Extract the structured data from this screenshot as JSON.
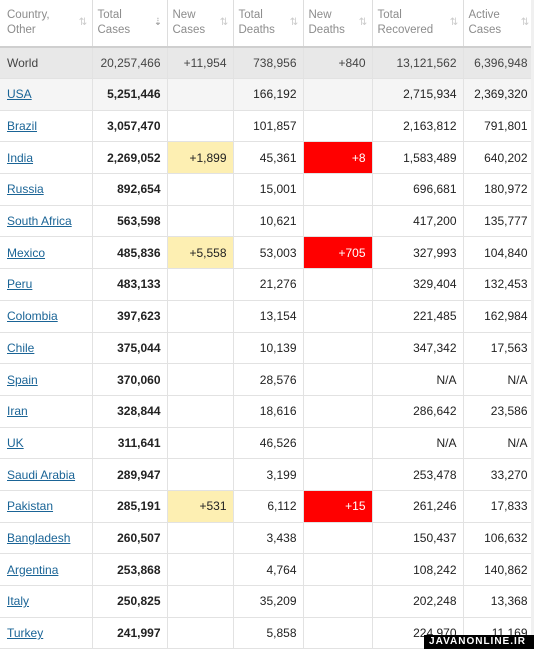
{
  "headers": [
    {
      "label": "Country,\nOther",
      "sort_icon": "sort-icon"
    },
    {
      "label": "Total\nCases",
      "sort_icon": "sort-desc-icon"
    },
    {
      "label": "New\nCases",
      "sort_icon": "sort-icon"
    },
    {
      "label": "Total\nDeaths",
      "sort_icon": "sort-icon"
    },
    {
      "label": "New\nDeaths",
      "sort_icon": "sort-icon"
    },
    {
      "label": "Total\nRecovered",
      "sort_icon": "sort-icon"
    },
    {
      "label": "Active\nCases",
      "sort_icon": "sort-icon"
    }
  ],
  "world": {
    "name": "World",
    "total_cases": "20,257,466",
    "new_cases": "+11,954",
    "total_deaths": "738,956",
    "new_deaths": "+840",
    "total_recovered": "13,121,562",
    "active_cases": "6,396,948"
  },
  "rows": [
    {
      "name": "USA",
      "total_cases": "5,251,446",
      "new_cases": "",
      "total_deaths": "166,192",
      "new_deaths": "",
      "total_recovered": "2,715,934",
      "active_cases": "2,369,320"
    },
    {
      "name": "Brazil",
      "total_cases": "3,057,470",
      "new_cases": "",
      "total_deaths": "101,857",
      "new_deaths": "",
      "total_recovered": "2,163,812",
      "active_cases": "791,801"
    },
    {
      "name": "India",
      "total_cases": "2,269,052",
      "new_cases": "+1,899",
      "total_deaths": "45,361",
      "new_deaths": "+8",
      "total_recovered": "1,583,489",
      "active_cases": "640,202"
    },
    {
      "name": "Russia",
      "total_cases": "892,654",
      "new_cases": "",
      "total_deaths": "15,001",
      "new_deaths": "",
      "total_recovered": "696,681",
      "active_cases": "180,972"
    },
    {
      "name": "South Africa",
      "total_cases": "563,598",
      "new_cases": "",
      "total_deaths": "10,621",
      "new_deaths": "",
      "total_recovered": "417,200",
      "active_cases": "135,777"
    },
    {
      "name": "Mexico",
      "total_cases": "485,836",
      "new_cases": "+5,558",
      "total_deaths": "53,003",
      "new_deaths": "+705",
      "total_recovered": "327,993",
      "active_cases": "104,840"
    },
    {
      "name": "Peru",
      "total_cases": "483,133",
      "new_cases": "",
      "total_deaths": "21,276",
      "new_deaths": "",
      "total_recovered": "329,404",
      "active_cases": "132,453"
    },
    {
      "name": "Colombia",
      "total_cases": "397,623",
      "new_cases": "",
      "total_deaths": "13,154",
      "new_deaths": "",
      "total_recovered": "221,485",
      "active_cases": "162,984"
    },
    {
      "name": "Chile",
      "total_cases": "375,044",
      "new_cases": "",
      "total_deaths": "10,139",
      "new_deaths": "",
      "total_recovered": "347,342",
      "active_cases": "17,563"
    },
    {
      "name": "Spain",
      "total_cases": "370,060",
      "new_cases": "",
      "total_deaths": "28,576",
      "new_deaths": "",
      "total_recovered": "N/A",
      "active_cases": "N/A"
    },
    {
      "name": "Iran",
      "total_cases": "328,844",
      "new_cases": "",
      "total_deaths": "18,616",
      "new_deaths": "",
      "total_recovered": "286,642",
      "active_cases": "23,586"
    },
    {
      "name": "UK",
      "total_cases": "311,641",
      "new_cases": "",
      "total_deaths": "46,526",
      "new_deaths": "",
      "total_recovered": "N/A",
      "active_cases": "N/A"
    },
    {
      "name": "Saudi Arabia",
      "total_cases": "289,947",
      "new_cases": "",
      "total_deaths": "3,199",
      "new_deaths": "",
      "total_recovered": "253,478",
      "active_cases": "33,270"
    },
    {
      "name": "Pakistan",
      "total_cases": "285,191",
      "new_cases": "+531",
      "total_deaths": "6,112",
      "new_deaths": "+15",
      "total_recovered": "261,246",
      "active_cases": "17,833"
    },
    {
      "name": "Bangladesh",
      "total_cases": "260,507",
      "new_cases": "",
      "total_deaths": "3,438",
      "new_deaths": "",
      "total_recovered": "150,437",
      "active_cases": "106,632"
    },
    {
      "name": "Argentina",
      "total_cases": "253,868",
      "new_cases": "",
      "total_deaths": "4,764",
      "new_deaths": "",
      "total_recovered": "108,242",
      "active_cases": "140,862"
    },
    {
      "name": "Italy",
      "total_cases": "250,825",
      "new_cases": "",
      "total_deaths": "35,209",
      "new_deaths": "",
      "total_recovered": "202,248",
      "active_cases": "13,368"
    },
    {
      "name": "Turkey",
      "total_cases": "241,997",
      "new_cases": "",
      "total_deaths": "5,858",
      "new_deaths": "",
      "total_recovered": "224,970",
      "active_cases": "11,169"
    }
  ],
  "colors": {
    "new_cases_highlight": "#fdefb2",
    "new_deaths_highlight": "#ff0000",
    "link": "#1a6496",
    "world_row_bg": "#e8e8e8"
  },
  "watermark": "JAVANONLINE.IR"
}
